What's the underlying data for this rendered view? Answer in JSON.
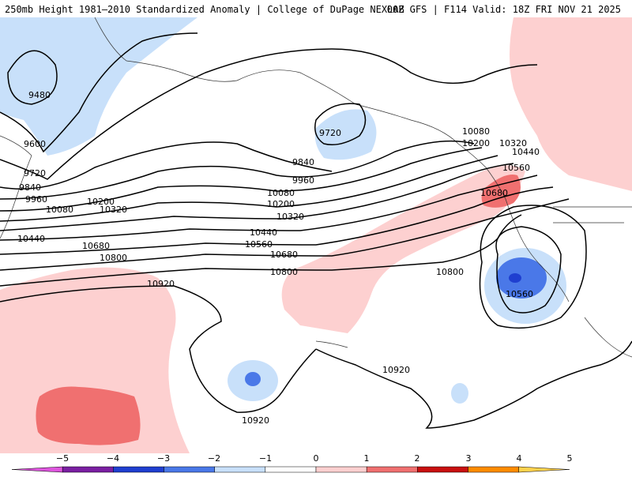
{
  "header": {
    "left_title": "250mb Height 1981–2010 Standardized Anomaly | College of DuPage NEXLAB",
    "right_title": "00Z GFS | F114 Valid: 18Z FRI NOV 21 2025"
  },
  "map": {
    "contour_labels": [
      "9480",
      "9600",
      "9720",
      "9840",
      "9960",
      "10080",
      "10200",
      "10320",
      "10440",
      "10560",
      "10680",
      "10800",
      "10920"
    ],
    "anomaly_colors": {
      "neg5": "#cc44cc",
      "neg4": "#7a1fa2",
      "neg3": "#1f3fd0",
      "neg2": "#4a78e8",
      "neg1": "#c8e0fa",
      "zero": "#ffffff",
      "pos1": "#fdd0d0",
      "pos2": "#f07070",
      "pos3": "#d42020",
      "pos4": "#a00000",
      "pos5": "#f5a000"
    }
  },
  "colorbar": {
    "ticks": [
      "−5",
      "−4",
      "−3",
      "−2",
      "−1",
      "0",
      "1",
      "2",
      "3",
      "4",
      "5"
    ],
    "colors": [
      "#dd55dd",
      "#7a1fa2",
      "#1f3fd0",
      "#4a78e8",
      "#c8e0fa",
      "#ffffff",
      "#fdd0d0",
      "#f07070",
      "#c81010",
      "#ff8c00",
      "#ffd24d"
    ]
  }
}
